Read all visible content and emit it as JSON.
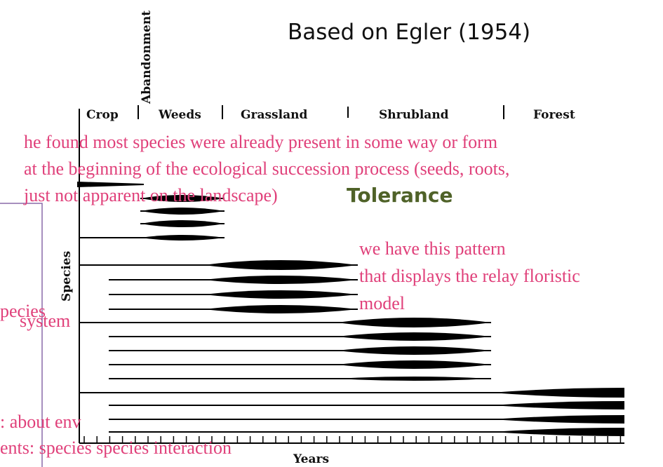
{
  "title": "Based on Egler (1954)",
  "diagram": {
    "stages": [
      "Crop",
      "Abandonment",
      "Weeds",
      "Grassland",
      "Shrubland",
      "Forest"
    ],
    "y_axis": "Species",
    "x_axis": "Years"
  },
  "annotations": {
    "top": [
      "he found most species were already present in some way or form",
      "at the beginning of the ecological succession process (seeds, roots,",
      "just not apparent on the landscape)"
    ],
    "tolerance": "Tolerance",
    "right": [
      "we have this pattern",
      "that displays the relay floristic",
      "model"
    ],
    "left": [
      "pecies",
      "system",
      ": about env",
      "ents: species species interaction"
    ]
  }
}
